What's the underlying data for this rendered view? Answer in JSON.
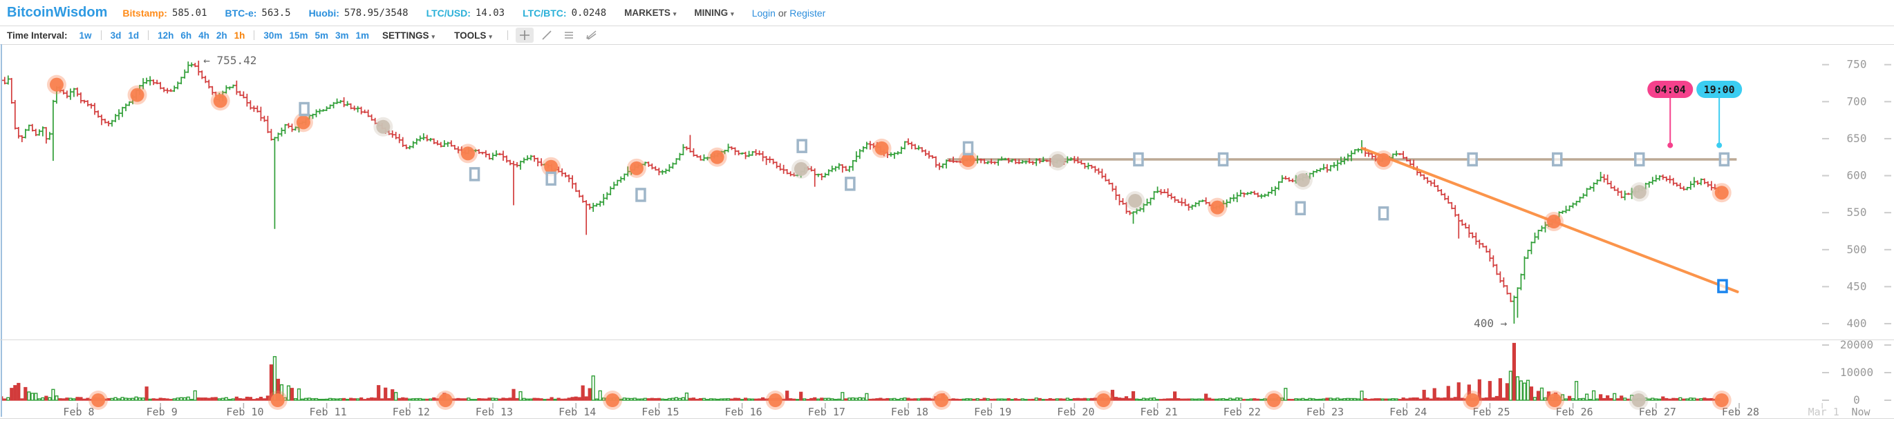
{
  "header": {
    "logo": "BitcoinWisdom",
    "tickers": [
      {
        "label": "Bitstamp:",
        "value": "585.01",
        "color": "#ff8c1a"
      },
      {
        "label": "BTC-e:",
        "value": "563.5",
        "color": "#2a8fdc"
      },
      {
        "label": "Huobi:",
        "value": "578.95/3548",
        "color": "#2a8fdc"
      },
      {
        "label": "LTC/USD:",
        "value": "14.03",
        "color": "#2ab0d8"
      },
      {
        "label": "LTC/BTC:",
        "value": "0.0248",
        "color": "#2ab0d8"
      }
    ],
    "menus": {
      "markets": "MARKETS",
      "mining": "MINING"
    },
    "auth": {
      "login": "Login",
      "or": "or",
      "register": "Register"
    }
  },
  "toolbar": {
    "label": "Time Interval:",
    "interval_groups": [
      [
        "1w"
      ],
      [
        "3d",
        "1d"
      ],
      [
        "12h",
        "6h",
        "4h",
        "2h",
        "1h"
      ],
      [
        "30m",
        "15m",
        "5m",
        "3m",
        "1m"
      ]
    ],
    "active_interval": "1h",
    "menus": {
      "settings": "SETTINGS",
      "tools": "TOOLS"
    },
    "tool_icons": [
      "crosshair-icon",
      "trendline-icon",
      "horizontal-lines-icon",
      "ray-arrow-icon"
    ]
  },
  "chart_data": {
    "type": "ohlc_bars_with_volume",
    "title": "",
    "interval": "1h",
    "palette": {
      "up": "#2f9e36",
      "down": "#d23b3b",
      "axis_text": "#999999",
      "axis_dash": "#cccccc",
      "date_text": "#6e6e6e",
      "date_muted": "#c9c9c9",
      "now_text": "#999999",
      "hline": "#b5a089",
      "diagline": "#fb8c3c",
      "circle_orange": "#f9814f",
      "circle_gray": "#cbc0b2",
      "flag_stroke": "#9fb6c9",
      "handle_stroke": "#1d86ee",
      "left_border": "#9fc0de",
      "divider": "#d9d9d9",
      "bubble_pink": "#f5418c",
      "bubble_cyan": "#3bcdf1",
      "bubble_text": "#1a1a1a",
      "anno_text": "#666666"
    },
    "x_axis": {
      "month": "Feb",
      "day_labels": [
        8,
        9,
        10,
        11,
        12,
        13,
        14,
        15,
        16,
        17,
        18,
        19,
        20,
        21,
        22,
        23,
        24,
        25,
        26,
        27,
        28
      ],
      "extra_label": "Mar 1",
      "now_label": "Now"
    },
    "y_axis": {
      "price_ticks": [
        750,
        700,
        650,
        600,
        550,
        500,
        450,
        400
      ],
      "range_shown": [
        400,
        755.42
      ]
    },
    "volume_axis": {
      "ticks": [
        20000,
        10000,
        0
      ]
    },
    "annotations": {
      "high_label": {
        "text": "755.42",
        "arrow": "←",
        "day": 9.45,
        "price": 755.42
      },
      "low_label": {
        "text": "400",
        "arrow": "→",
        "day": 25.29,
        "price": 400
      }
    },
    "time_tags": [
      {
        "text": "04:04",
        "color_key": "bubble_pink",
        "day": 27.17,
        "dot_price": 641
      },
      {
        "text": "19:00",
        "color_key": "bubble_cyan",
        "day": 27.76,
        "dot_price": 641
      }
    ],
    "trendlines": [
      {
        "kind": "horizontal",
        "day1": 18.47,
        "day2": 27.97,
        "price": 622,
        "color_key": "hline",
        "handle_days": [
          20.77,
          21.79,
          24.79,
          25.81,
          26.8,
          27.82
        ]
      },
      {
        "kind": "segment",
        "day1": 23.46,
        "price1": 637,
        "day2": 27.98,
        "price2": 443,
        "color_key": "diagline",
        "handle_days": [
          27.8
        ]
      }
    ],
    "price_path": [
      [
        7.08,
        736
      ],
      [
        7.15,
        722
      ],
      [
        7.22,
        730
      ],
      [
        7.28,
        668
      ],
      [
        7.35,
        648
      ],
      [
        7.45,
        668
      ],
      [
        7.55,
        655
      ],
      [
        7.62,
        668
      ],
      [
        7.69,
        640
      ],
      [
        7.75,
        700
      ],
      [
        7.8,
        722
      ],
      [
        7.9,
        706
      ],
      [
        8.0,
        718
      ],
      [
        8.1,
        700
      ],
      [
        8.2,
        695
      ],
      [
        8.3,
        678
      ],
      [
        8.4,
        668
      ],
      [
        8.5,
        680
      ],
      [
        8.6,
        692
      ],
      [
        8.72,
        708
      ],
      [
        8.8,
        722
      ],
      [
        8.9,
        732
      ],
      [
        9.0,
        724
      ],
      [
        9.1,
        714
      ],
      [
        9.2,
        716
      ],
      [
        9.3,
        734
      ],
      [
        9.38,
        748
      ],
      [
        9.45,
        751
      ],
      [
        9.52,
        738
      ],
      [
        9.6,
        722
      ],
      [
        9.72,
        703
      ],
      [
        9.8,
        715
      ],
      [
        9.9,
        722
      ],
      [
        10.0,
        710
      ],
      [
        10.1,
        695
      ],
      [
        10.2,
        688
      ],
      [
        10.3,
        672
      ],
      [
        10.36,
        648
      ],
      [
        10.45,
        655
      ],
      [
        10.55,
        668
      ],
      [
        10.65,
        662
      ],
      [
        10.72,
        672
      ],
      [
        10.8,
        678
      ],
      [
        10.9,
        684
      ],
      [
        11.0,
        690
      ],
      [
        11.1,
        696
      ],
      [
        11.2,
        700
      ],
      [
        11.3,
        694
      ],
      [
        11.4,
        690
      ],
      [
        11.5,
        684
      ],
      [
        11.6,
        672
      ],
      [
        11.68,
        665
      ],
      [
        11.78,
        658
      ],
      [
        11.88,
        650
      ],
      [
        12.0,
        638
      ],
      [
        12.1,
        645
      ],
      [
        12.2,
        652
      ],
      [
        12.3,
        648
      ],
      [
        12.4,
        640
      ],
      [
        12.5,
        645
      ],
      [
        12.6,
        636
      ],
      [
        12.7,
        630
      ],
      [
        12.8,
        634
      ],
      [
        12.9,
        630
      ],
      [
        13.0,
        625
      ],
      [
        13.1,
        630
      ],
      [
        13.2,
        622
      ],
      [
        13.3,
        612
      ],
      [
        13.4,
        620
      ],
      [
        13.5,
        626
      ],
      [
        13.6,
        618
      ],
      [
        13.7,
        612
      ],
      [
        13.8,
        606
      ],
      [
        13.9,
        600
      ],
      [
        14.0,
        590
      ],
      [
        14.1,
        568
      ],
      [
        14.2,
        558
      ],
      [
        14.3,
        562
      ],
      [
        14.4,
        572
      ],
      [
        14.5,
        588
      ],
      [
        14.6,
        600
      ],
      [
        14.73,
        610
      ],
      [
        14.85,
        618
      ],
      [
        14.95,
        612
      ],
      [
        15.05,
        604
      ],
      [
        15.15,
        610
      ],
      [
        15.25,
        622
      ],
      [
        15.35,
        640
      ],
      [
        15.45,
        630
      ],
      [
        15.55,
        622
      ],
      [
        15.7,
        625
      ],
      [
        15.8,
        632
      ],
      [
        15.9,
        638
      ],
      [
        16.0,
        630
      ],
      [
        16.1,
        626
      ],
      [
        16.2,
        632
      ],
      [
        16.3,
        626
      ],
      [
        16.45,
        615
      ],
      [
        16.55,
        605
      ],
      [
        16.65,
        598
      ],
      [
        16.72,
        602
      ],
      [
        16.8,
        610
      ],
      [
        16.9,
        604
      ],
      [
        17.0,
        600
      ],
      [
        17.1,
        608
      ],
      [
        17.2,
        615
      ],
      [
        17.3,
        606
      ],
      [
        17.4,
        625
      ],
      [
        17.55,
        644
      ],
      [
        17.68,
        637
      ],
      [
        17.8,
        626
      ],
      [
        17.9,
        630
      ],
      [
        18.0,
        644
      ],
      [
        18.1,
        640
      ],
      [
        18.2,
        634
      ],
      [
        18.3,
        628
      ],
      [
        18.4,
        612
      ],
      [
        18.5,
        620
      ],
      [
        18.65,
        618
      ],
      [
        18.8,
        621
      ],
      [
        19.0,
        619
      ],
      [
        19.2,
        621
      ],
      [
        19.4,
        618
      ],
      [
        19.6,
        620
      ],
      [
        19.8,
        620
      ],
      [
        20.0,
        621
      ],
      [
        20.1,
        616
      ],
      [
        20.25,
        610
      ],
      [
        20.4,
        598
      ],
      [
        20.55,
        572
      ],
      [
        20.7,
        548
      ],
      [
        20.85,
        556
      ],
      [
        21.0,
        576
      ],
      [
        21.1,
        580
      ],
      [
        21.25,
        566
      ],
      [
        21.4,
        558
      ],
      [
        21.55,
        566
      ],
      [
        21.72,
        557
      ],
      [
        21.85,
        564
      ],
      [
        22.0,
        574
      ],
      [
        22.15,
        578
      ],
      [
        22.3,
        572
      ],
      [
        22.45,
        580
      ],
      [
        22.55,
        600
      ],
      [
        22.68,
        592
      ],
      [
        22.8,
        598
      ],
      [
        22.95,
        606
      ],
      [
        23.1,
        610
      ],
      [
        23.25,
        618
      ],
      [
        23.4,
        634
      ],
      [
        23.5,
        636
      ],
      [
        23.6,
        626
      ],
      [
        23.72,
        621
      ],
      [
        23.85,
        626
      ],
      [
        23.95,
        630
      ],
      [
        24.05,
        620
      ],
      [
        24.15,
        608
      ],
      [
        24.3,
        592
      ],
      [
        24.45,
        576
      ],
      [
        24.6,
        552
      ],
      [
        24.72,
        532
      ],
      [
        24.85,
        516
      ],
      [
        24.95,
        505
      ],
      [
        25.05,
        488
      ],
      [
        25.15,
        462
      ],
      [
        25.24,
        442
      ],
      [
        25.3,
        428
      ],
      [
        25.38,
        450
      ],
      [
        25.46,
        488
      ],
      [
        25.55,
        512
      ],
      [
        25.65,
        528
      ],
      [
        25.77,
        538
      ],
      [
        25.9,
        552
      ],
      [
        26.0,
        558
      ],
      [
        26.1,
        566
      ],
      [
        26.25,
        586
      ],
      [
        26.38,
        598
      ],
      [
        26.5,
        585
      ],
      [
        26.62,
        572
      ],
      [
        26.72,
        576
      ],
      [
        26.82,
        580
      ],
      [
        26.95,
        590
      ],
      [
        27.1,
        600
      ],
      [
        27.2,
        594
      ],
      [
        27.3,
        586
      ],
      [
        27.4,
        582
      ],
      [
        27.5,
        590
      ],
      [
        27.6,
        594
      ],
      [
        27.7,
        586
      ],
      [
        27.79,
        580
      ]
    ],
    "wick_lows": [
      [
        7.1,
        714
      ],
      [
        7.69,
        620
      ],
      [
        10.36,
        528
      ],
      [
        13.26,
        560
      ],
      [
        14.13,
        520
      ],
      [
        16.86,
        585
      ],
      [
        20.71,
        535
      ],
      [
        24.63,
        515
      ],
      [
        25.29,
        400
      ],
      [
        25.33,
        408
      ]
    ],
    "wick_highs": [
      [
        7.1,
        750
      ],
      [
        9.45,
        755.42
      ],
      [
        11.2,
        706
      ],
      [
        15.36,
        655
      ],
      [
        23.46,
        648
      ],
      [
        26.38,
        602
      ]
    ],
    "day_start": 7.083,
    "day_end": 27.79,
    "volume_spikes": [
      [
        7.2,
        4300,
        "r"
      ],
      [
        7.25,
        5300,
        "r"
      ],
      [
        7.3,
        6100,
        "r"
      ],
      [
        7.36,
        4600,
        "r"
      ],
      [
        7.42,
        3000,
        "g"
      ],
      [
        7.48,
        2500,
        "g"
      ],
      [
        8.85,
        4800,
        "r"
      ],
      [
        9.42,
        3400,
        "g"
      ],
      [
        10.33,
        12800,
        "r"
      ],
      [
        10.37,
        15800,
        "g"
      ],
      [
        10.42,
        7600,
        "r"
      ],
      [
        10.47,
        5600,
        "g"
      ],
      [
        10.53,
        5200,
        "g"
      ],
      [
        10.6,
        4300,
        "r"
      ],
      [
        10.67,
        4100,
        "g"
      ],
      [
        11.63,
        5300,
        "r"
      ],
      [
        11.7,
        4400,
        "r"
      ],
      [
        11.78,
        3800,
        "r"
      ],
      [
        11.85,
        2800,
        "g"
      ],
      [
        12.4,
        2500,
        "r"
      ],
      [
        13.26,
        3900,
        "r"
      ],
      [
        13.32,
        3100,
        "g"
      ],
      [
        14.08,
        5200,
        "r"
      ],
      [
        14.15,
        4200,
        "r"
      ],
      [
        14.2,
        8800,
        "g"
      ],
      [
        14.3,
        3400,
        "g"
      ],
      [
        15.35,
        2600,
        "g"
      ],
      [
        16.55,
        3300,
        "r"
      ],
      [
        16.7,
        2900,
        "r"
      ],
      [
        17.2,
        2800,
        "g"
      ],
      [
        17.5,
        2400,
        "g"
      ],
      [
        18.4,
        2300,
        "r"
      ],
      [
        20.45,
        3600,
        "r"
      ],
      [
        20.7,
        3100,
        "r"
      ],
      [
        21.2,
        3000,
        "r"
      ],
      [
        21.6,
        2200,
        "r"
      ],
      [
        22.55,
        4300,
        "g"
      ],
      [
        23.45,
        3300,
        "g"
      ],
      [
        24.2,
        3600,
        "r"
      ],
      [
        24.35,
        4200,
        "r"
      ],
      [
        24.5,
        5000,
        "r"
      ],
      [
        24.62,
        6300,
        "r"
      ],
      [
        24.75,
        5500,
        "r"
      ],
      [
        24.88,
        7400,
        "r"
      ],
      [
        25.0,
        6800,
        "r"
      ],
      [
        25.12,
        7800,
        "r"
      ],
      [
        25.21,
        6000,
        "r"
      ],
      [
        25.25,
        10500,
        "g"
      ],
      [
        25.29,
        20600,
        "r"
      ],
      [
        25.33,
        8500,
        "g"
      ],
      [
        25.38,
        7000,
        "g"
      ],
      [
        25.42,
        6200,
        "g"
      ],
      [
        25.46,
        7200,
        "g"
      ],
      [
        25.5,
        4800,
        "r"
      ],
      [
        25.58,
        3200,
        "r"
      ],
      [
        25.63,
        4400,
        "g"
      ],
      [
        25.7,
        3000,
        "r"
      ],
      [
        25.79,
        2600,
        "r"
      ],
      [
        25.87,
        2000,
        "g"
      ],
      [
        25.95,
        1400,
        "r"
      ],
      [
        26.03,
        6800,
        "g"
      ],
      [
        26.15,
        2200,
        "g"
      ],
      [
        26.25,
        3400,
        "g"
      ],
      [
        26.33,
        2000,
        "r"
      ],
      [
        26.4,
        1600,
        "r"
      ],
      [
        26.5,
        2400,
        "g"
      ],
      [
        26.6,
        1500,
        "r"
      ],
      [
        26.7,
        1800,
        "g"
      ],
      [
        27.1,
        1200,
        "r"
      ],
      [
        27.3,
        900,
        "g"
      ]
    ],
    "markers": {
      "price_circles": [
        [
          7.75,
          723,
          "o"
        ],
        [
          8.72,
          709,
          "o"
        ],
        [
          9.72,
          701,
          "o"
        ],
        [
          10.72,
          672,
          "o"
        ],
        [
          11.68,
          666,
          "gr"
        ],
        [
          12.7,
          630,
          "o"
        ],
        [
          13.7,
          612,
          "o"
        ],
        [
          14.73,
          610,
          "o"
        ],
        [
          15.7,
          625,
          "o"
        ],
        [
          16.71,
          609,
          "gr"
        ],
        [
          17.68,
          637,
          "o"
        ],
        [
          18.72,
          621,
          "o"
        ],
        [
          19.8,
          620,
          "gr"
        ],
        [
          20.73,
          566,
          "gr"
        ],
        [
          21.72,
          557,
          "o"
        ],
        [
          22.75,
          594,
          "gr"
        ],
        [
          23.72,
          621,
          "o"
        ],
        [
          25.77,
          538,
          "o"
        ],
        [
          26.8,
          578,
          "gr"
        ],
        [
          27.79,
          577,
          "o"
        ]
      ],
      "volume_circles": [
        [
          8.25,
          "o"
        ],
        [
          10.41,
          "o"
        ],
        [
          12.43,
          "o"
        ],
        [
          14.44,
          "o"
        ],
        [
          16.4,
          "o"
        ],
        [
          18.4,
          "o"
        ],
        [
          20.35,
          "o"
        ],
        [
          22.4,
          "o"
        ],
        [
          24.79,
          "o"
        ],
        [
          25.78,
          "o"
        ],
        [
          26.79,
          "gr"
        ],
        [
          27.79,
          "o"
        ]
      ],
      "flags": [
        [
          10.73,
          690
        ],
        [
          12.78,
          602
        ],
        [
          13.7,
          596
        ],
        [
          14.78,
          574
        ],
        [
          16.72,
          640
        ],
        [
          17.3,
          589
        ],
        [
          18.72,
          637
        ],
        [
          22.72,
          556
        ],
        [
          23.72,
          549
        ]
      ]
    }
  }
}
